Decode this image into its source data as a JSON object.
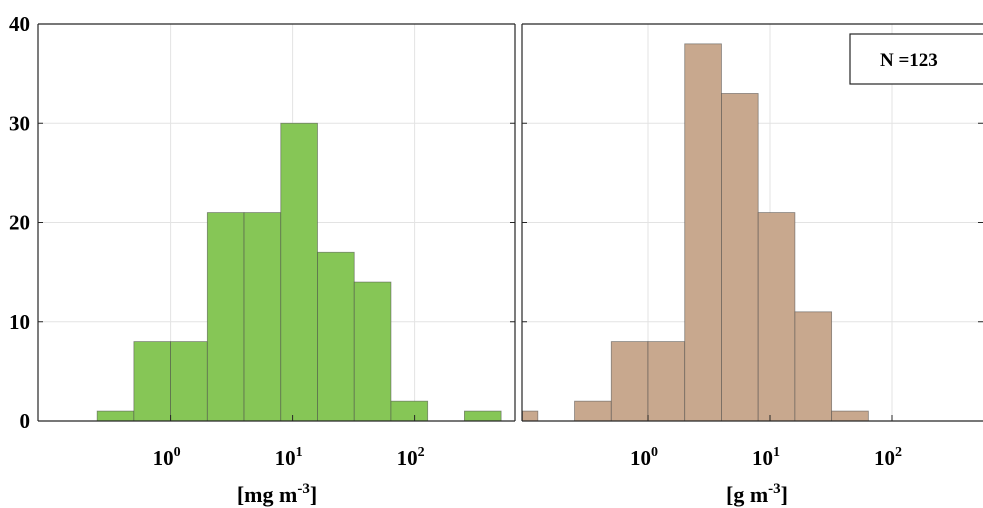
{
  "chart_data": [
    {
      "type": "bar",
      "panel": "left",
      "xscale": "log",
      "xlabel": "[mg m",
      "xlabel_sup": "-3",
      "xlabel_close": "]",
      "ylim": [
        0,
        40
      ],
      "yticks": [
        "0",
        "10",
        "20",
        "30",
        "40"
      ],
      "xticks": [
        {
          "value": 1,
          "base": "10",
          "exp": "0"
        },
        {
          "value": 10,
          "base": "10",
          "exp": "1"
        },
        {
          "value": 100,
          "base": "10",
          "exp": "2"
        }
      ],
      "grid": true,
      "color": "#86c656",
      "bins": [
        {
          "x0": 0.25,
          "x1": 0.5,
          "count": 1
        },
        {
          "x0": 0.5,
          "x1": 1,
          "count": 8
        },
        {
          "x0": 1,
          "x1": 2,
          "count": 8
        },
        {
          "x0": 2,
          "x1": 4,
          "count": 21
        },
        {
          "x0": 4,
          "x1": 8,
          "count": 21
        },
        {
          "x0": 8,
          "x1": 16,
          "count": 30
        },
        {
          "x0": 16,
          "x1": 32,
          "count": 17
        },
        {
          "x0": 32,
          "x1": 64,
          "count": 14
        },
        {
          "x0": 64,
          "x1": 128,
          "count": 2
        },
        {
          "x0": 256,
          "x1": 512,
          "count": 1
        }
      ]
    },
    {
      "type": "bar",
      "panel": "right",
      "xscale": "log",
      "xlabel": "[g m",
      "xlabel_sup": "-3",
      "xlabel_close": "]",
      "ylim": [
        0,
        40
      ],
      "xticks": [
        {
          "value": 1,
          "base": "10",
          "exp": "0"
        },
        {
          "value": 10,
          "base": "10",
          "exp": "1"
        },
        {
          "value": 100,
          "base": "10",
          "exp": "2"
        }
      ],
      "grid": true,
      "color": "#c8a88e",
      "legend": {
        "text": "N =123",
        "placement": "top-right"
      },
      "bins": [
        {
          "x0": 0.062,
          "x1": 0.125,
          "count": 1
        },
        {
          "x0": 0.125,
          "x1": 0.25,
          "count": 0
        },
        {
          "x0": 0.25,
          "x1": 0.5,
          "count": 2
        },
        {
          "x0": 0.5,
          "x1": 1,
          "count": 8
        },
        {
          "x0": 1,
          "x1": 2,
          "count": 8
        },
        {
          "x0": 2,
          "x1": 4,
          "count": 38
        },
        {
          "x0": 4,
          "x1": 8,
          "count": 33
        },
        {
          "x0": 8,
          "x1": 16,
          "count": 21
        },
        {
          "x0": 16,
          "x1": 32,
          "count": 11
        },
        {
          "x0": 32,
          "x1": 64,
          "count": 1
        },
        {
          "x0": 64,
          "x1": 128,
          "count": 0
        },
        {
          "x0": 128,
          "x1": 256,
          "count": 0
        }
      ]
    }
  ]
}
